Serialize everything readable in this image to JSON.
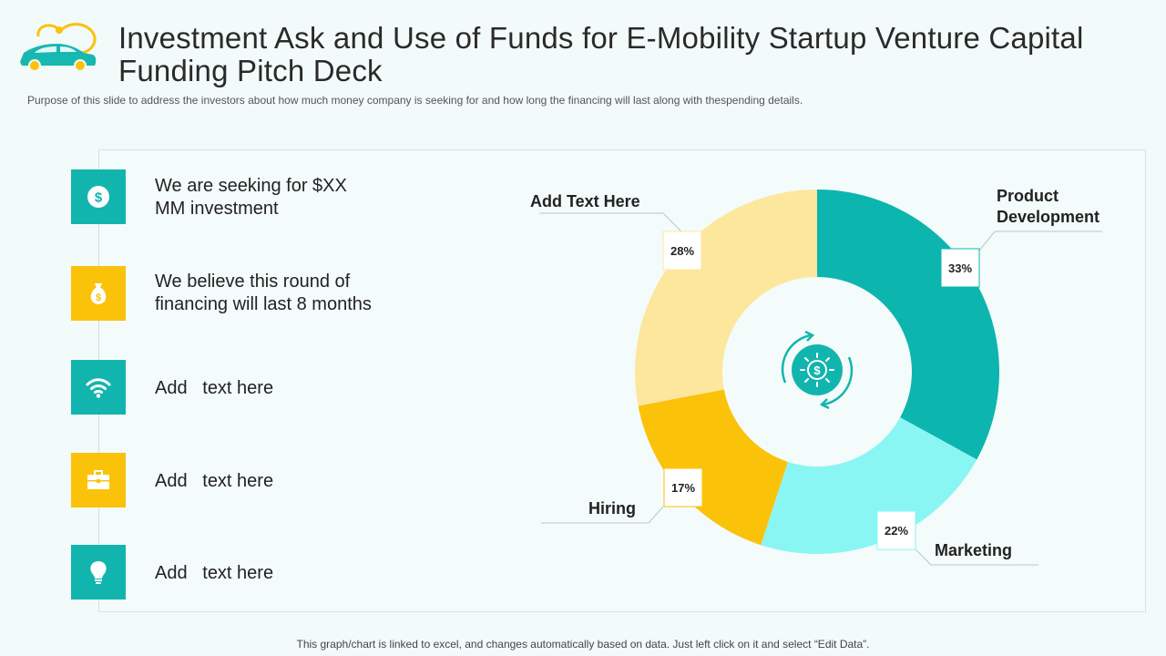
{
  "header": {
    "title": "Investment Ask and Use of Funds for E-Mobility Startup Venture Capital Funding Pitch Deck",
    "subtitle": "Purpose of this slide to address the investors about how much money company is seeking for and how long the financing will last along with thespending details."
  },
  "features": [
    {
      "icon": "dollar-icon",
      "color": "#12b5ad",
      "text": "We are seeking for $XX MM investment"
    },
    {
      "icon": "money-bag-icon",
      "color": "#fbc20a",
      "text": "We believe this round of financing will last 8 months"
    },
    {
      "icon": "wifi-icon",
      "color": "#12b5ad",
      "text": "Add   text here"
    },
    {
      "icon": "briefcase-icon",
      "color": "#fbc20a",
      "text": "Add   text here"
    },
    {
      "icon": "lightbulb-icon",
      "color": "#12b5ad",
      "text": "Add   text here"
    }
  ],
  "chart_data": {
    "type": "pie",
    "donut": true,
    "categories": [
      "Product Development",
      "Marketing",
      "Hiring",
      "Add Text Here"
    ],
    "values": [
      33,
      22,
      17,
      28
    ],
    "value_labels": [
      "33%",
      "22%",
      "17%",
      "28%"
    ],
    "colors": [
      "#0db5af",
      "#8af6f4",
      "#fbc20a",
      "#fde79c"
    ],
    "center_icon": "dollar-cycle-icon"
  },
  "footer": {
    "note": "This graph/chart is linked to excel, and changes automatically based on data. Just left click on it and select “Edit Data”."
  }
}
